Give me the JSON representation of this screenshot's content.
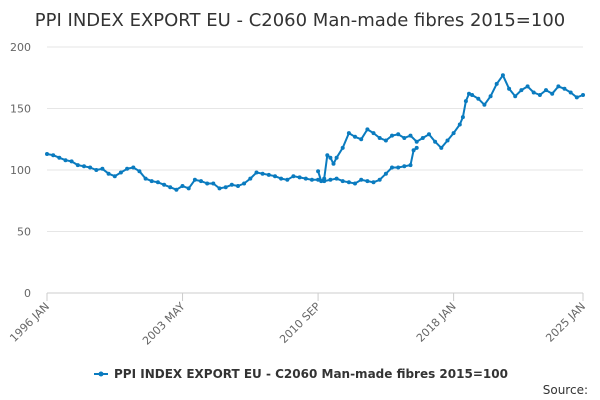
{
  "chart_data": {
    "type": "line",
    "title": "PPI INDEX EXPORT EU - C2060 Man-made fibres 2015=100",
    "xlabel": "",
    "ylabel": "",
    "ylim": [
      0,
      200
    ],
    "yticks": [
      0,
      50,
      100,
      150,
      200
    ],
    "xlim": [
      "1996-01",
      "2025-01"
    ],
    "xticks": [
      {
        "date": "1996-01",
        "label": "1996 JAN"
      },
      {
        "date": "2003-05",
        "label": "2003 MAY"
      },
      {
        "date": "2010-09",
        "label": "2010 SEP"
      },
      {
        "date": "2018-01",
        "label": "2018 JAN"
      },
      {
        "date": "2025-01",
        "label": "2025 JAN"
      }
    ],
    "grid": "horizontal",
    "legend_position": "bottom",
    "source_label": "Source:",
    "series": [
      {
        "name": "PPI INDEX EXPORT EU - C2060 Man-made fibres 2015=100",
        "color": "#0a7bbf",
        "segments": [
          [
            [
              "1996-01",
              113
            ],
            [
              "1996-05",
              112
            ],
            [
              "1996-09",
              110
            ],
            [
              "1997-01",
              108
            ],
            [
              "1997-05",
              107
            ],
            [
              "1997-09",
              104
            ],
            [
              "1998-01",
              103
            ],
            [
              "1998-05",
              102
            ],
            [
              "1998-09",
              100
            ],
            [
              "1999-01",
              101
            ],
            [
              "1999-05",
              97
            ],
            [
              "1999-09",
              95
            ],
            [
              "2000-01",
              98
            ],
            [
              "2000-05",
              101
            ],
            [
              "2000-09",
              102
            ],
            [
              "2001-01",
              99
            ],
            [
              "2001-05",
              93
            ],
            [
              "2001-09",
              91
            ],
            [
              "2002-01",
              90
            ],
            [
              "2002-05",
              88
            ],
            [
              "2002-09",
              86
            ],
            [
              "2003-01",
              84
            ],
            [
              "2003-05",
              87
            ],
            [
              "2003-09",
              85
            ],
            [
              "2004-01",
              92
            ],
            [
              "2004-05",
              91
            ],
            [
              "2004-09",
              89
            ],
            [
              "2005-01",
              89
            ],
            [
              "2005-05",
              85
            ],
            [
              "2005-09",
              86
            ],
            [
              "2006-01",
              88
            ],
            [
              "2006-05",
              87
            ],
            [
              "2006-09",
              89
            ],
            [
              "2007-01",
              93
            ],
            [
              "2007-05",
              98
            ],
            [
              "2007-09",
              97
            ],
            [
              "2008-01",
              96
            ],
            [
              "2008-05",
              95
            ],
            [
              "2008-09",
              93
            ],
            [
              "2009-01",
              92
            ],
            [
              "2009-05",
              95
            ],
            [
              "2009-09",
              94
            ],
            [
              "2010-01",
              93
            ],
            [
              "2010-05",
              92
            ],
            [
              "2010-09",
              92
            ],
            [
              "2011-01",
              91
            ],
            [
              "2011-05",
              92
            ],
            [
              "2011-09",
              93
            ],
            [
              "2012-01",
              91
            ],
            [
              "2012-05",
              90
            ],
            [
              "2012-09",
              89
            ],
            [
              "2013-01",
              92
            ],
            [
              "2013-05",
              91
            ],
            [
              "2013-09",
              90
            ],
            [
              "2014-01",
              92
            ],
            [
              "2014-05",
              97
            ],
            [
              "2014-09",
              102
            ],
            [
              "2015-01",
              102
            ],
            [
              "2015-05",
              103
            ],
            [
              "2015-09",
              104
            ],
            [
              "2015-11",
              116
            ],
            [
              "2016-01",
              118
            ]
          ],
          [
            [
              "2010-09",
              99
            ],
            [
              "2010-11",
              91
            ],
            [
              "2011-01",
              93
            ],
            [
              "2011-03",
              112
            ],
            [
              "2011-05",
              110
            ],
            [
              "2011-07",
              105
            ],
            [
              "2011-09",
              110
            ],
            [
              "2012-01",
              118
            ],
            [
              "2012-05",
              130
            ],
            [
              "2012-09",
              127
            ],
            [
              "2013-01",
              125
            ],
            [
              "2013-05",
              133
            ],
            [
              "2013-09",
              130
            ],
            [
              "2014-01",
              126
            ],
            [
              "2014-05",
              124
            ],
            [
              "2014-09",
              128
            ],
            [
              "2015-01",
              129
            ],
            [
              "2015-05",
              126
            ],
            [
              "2015-09",
              128
            ],
            [
              "2016-01",
              123
            ],
            [
              "2016-05",
              126
            ],
            [
              "2016-09",
              129
            ],
            [
              "2017-01",
              123
            ],
            [
              "2017-05",
              118
            ],
            [
              "2017-09",
              124
            ],
            [
              "2018-01",
              130
            ],
            [
              "2018-05",
              137
            ],
            [
              "2018-07",
              143
            ],
            [
              "2018-09",
              156
            ],
            [
              "2018-11",
              162
            ],
            [
              "2019-01",
              161
            ],
            [
              "2019-05",
              158
            ],
            [
              "2019-09",
              153
            ],
            [
              "2020-01",
              160
            ],
            [
              "2020-05",
              170
            ],
            [
              "2020-09",
              177
            ],
            [
              "2021-01",
              166
            ],
            [
              "2021-05",
              160
            ],
            [
              "2021-09",
              165
            ],
            [
              "2022-01",
              168
            ],
            [
              "2022-05",
              163
            ],
            [
              "2022-09",
              161
            ],
            [
              "2023-01",
              165
            ],
            [
              "2023-05",
              162
            ],
            [
              "2023-09",
              168
            ],
            [
              "2024-01",
              166
            ],
            [
              "2024-05",
              163
            ],
            [
              "2024-09",
              159
            ],
            [
              "2025-01",
              161
            ]
          ]
        ]
      }
    ]
  }
}
